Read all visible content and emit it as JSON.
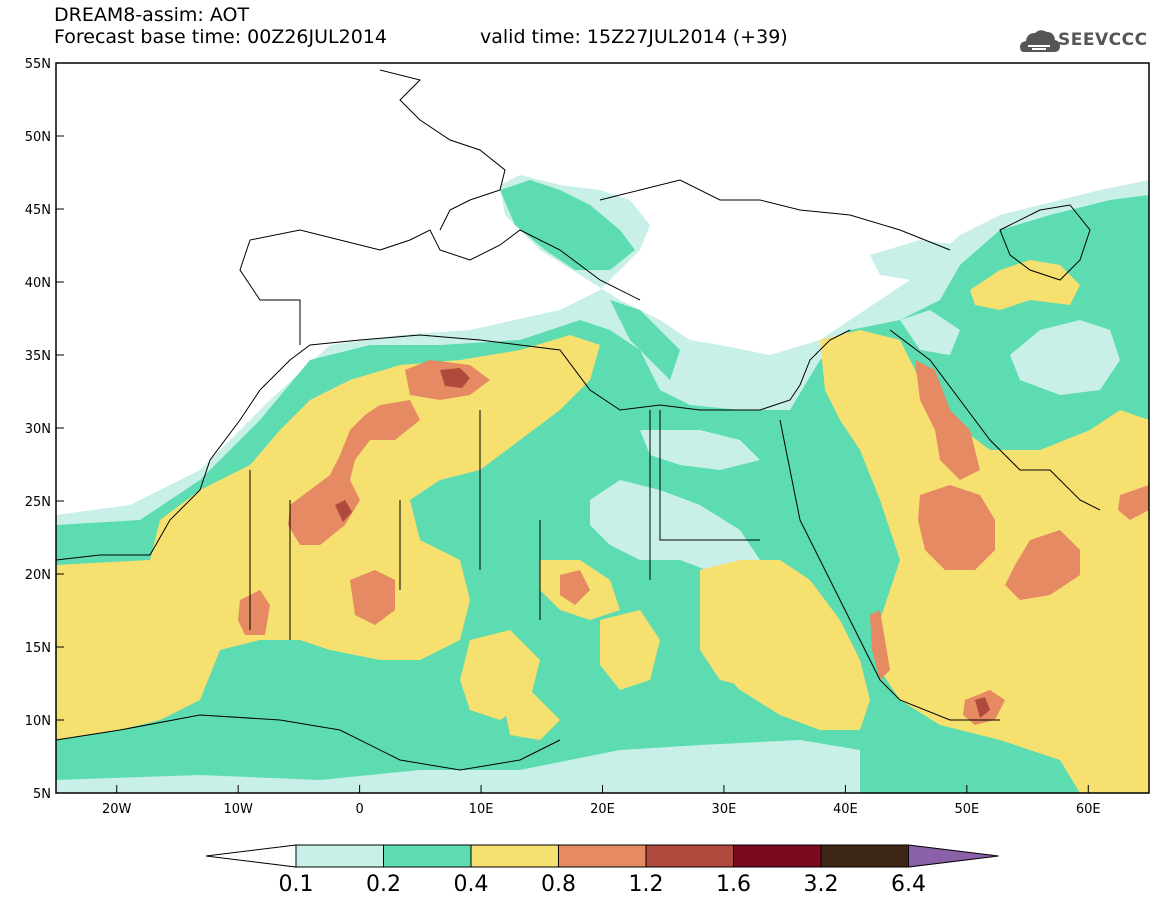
{
  "header": {
    "title": "DREAM8-assim: AOT",
    "base_time": "Forecast base time: 00Z26JUL2014",
    "valid_time": "valid time: 15Z27JUL2014 (+39)"
  },
  "logo": {
    "text": "SEEVCCC",
    "icon": "cloud-icon",
    "color": "#555555"
  },
  "map": {
    "lon_range": [
      -25,
      65
    ],
    "lat_range": [
      5,
      55
    ],
    "lon_ticks": [
      {
        "v": -20,
        "label": "20W"
      },
      {
        "v": -10,
        "label": "10W"
      },
      {
        "v": 0,
        "label": "0"
      },
      {
        "v": 10,
        "label": "10E"
      },
      {
        "v": 20,
        "label": "20E"
      },
      {
        "v": 30,
        "label": "30E"
      },
      {
        "v": 40,
        "label": "40E"
      },
      {
        "v": 50,
        "label": "50E"
      },
      {
        "v": 60,
        "label": "60E"
      }
    ],
    "lat_ticks": [
      {
        "v": 55,
        "label": "55N"
      },
      {
        "v": 50,
        "label": "50N"
      },
      {
        "v": 45,
        "label": "45N"
      },
      {
        "v": 40,
        "label": "40N"
      },
      {
        "v": 35,
        "label": "35N"
      },
      {
        "v": 30,
        "label": "30N"
      },
      {
        "v": 25,
        "label": "25N"
      },
      {
        "v": 20,
        "label": "20N"
      },
      {
        "v": 15,
        "label": "15N"
      },
      {
        "v": 10,
        "label": "10N"
      },
      {
        "v": 5,
        "label": "5N"
      }
    ]
  },
  "colorbar": {
    "labels": [
      "0.1",
      "0.2",
      "0.4",
      "0.8",
      "1.2",
      "1.6",
      "3.2",
      "6.4"
    ],
    "colors": [
      "#ffffff",
      "#c8f0e8",
      "#5cdcb0",
      "#f5e070",
      "#e58a62",
      "#b04a3c",
      "#7a0a1e",
      "#3e2616",
      "#8a60a8"
    ]
  }
}
